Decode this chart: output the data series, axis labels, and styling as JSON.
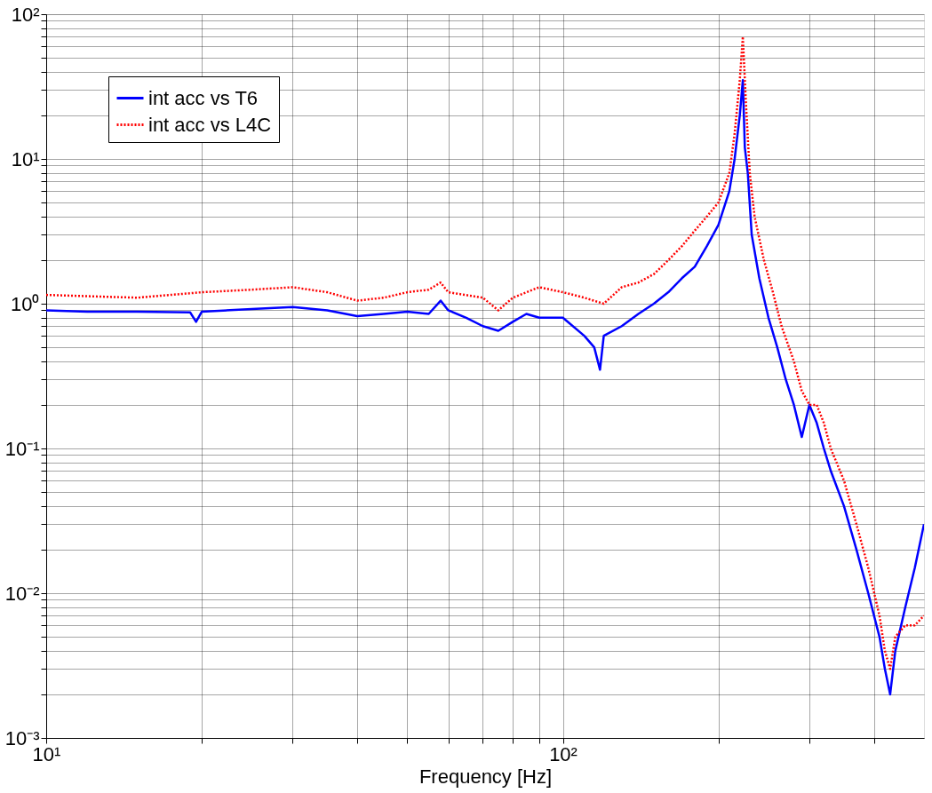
{
  "chart_data": {
    "type": "line",
    "xlabel": "Frequency [Hz]",
    "log": "xy",
    "grid": true,
    "legend": "top left",
    "marker": "none",
    "xlim": [
      10,
      500
    ],
    "ylim": [
      0.001,
      100
    ],
    "xticks": [
      {
        "value": 10,
        "label": "10¹"
      },
      {
        "value": 20,
        "label": null
      },
      {
        "value": 30,
        "label": null
      },
      {
        "value": 40,
        "label": null
      },
      {
        "value": 50,
        "label": null
      },
      {
        "value": 60,
        "label": null
      },
      {
        "value": 70,
        "label": null
      },
      {
        "value": 80,
        "label": null
      },
      {
        "value": 90,
        "label": null
      },
      {
        "value": 100,
        "label": "10²"
      },
      {
        "value": 200,
        "label": null
      },
      {
        "value": 300,
        "label": null
      },
      {
        "value": 400,
        "label": null
      }
    ],
    "yticks": [
      {
        "value": 0.001,
        "label": "10⁻³"
      },
      {
        "value": 0.002,
        "label": null
      },
      {
        "value": 0.003,
        "label": null
      },
      {
        "value": 0.004,
        "label": null
      },
      {
        "value": 0.005,
        "label": null
      },
      {
        "value": 0.006,
        "label": null
      },
      {
        "value": 0.007,
        "label": null
      },
      {
        "value": 0.008,
        "label": null
      },
      {
        "value": 0.009,
        "label": null
      },
      {
        "value": 0.01,
        "label": "10⁻²"
      },
      {
        "value": 0.02,
        "label": null
      },
      {
        "value": 0.03,
        "label": null
      },
      {
        "value": 0.04,
        "label": null
      },
      {
        "value": 0.05,
        "label": null
      },
      {
        "value": 0.06,
        "label": null
      },
      {
        "value": 0.07,
        "label": null
      },
      {
        "value": 0.08,
        "label": null
      },
      {
        "value": 0.09,
        "label": null
      },
      {
        "value": 0.1,
        "label": "10⁻¹"
      },
      {
        "value": 0.2,
        "label": null
      },
      {
        "value": 0.3,
        "label": null
      },
      {
        "value": 0.4,
        "label": null
      },
      {
        "value": 0.5,
        "label": null
      },
      {
        "value": 0.6,
        "label": null
      },
      {
        "value": 0.7,
        "label": null
      },
      {
        "value": 0.8,
        "label": null
      },
      {
        "value": 0.9,
        "label": null
      },
      {
        "value": 1,
        "label": "10⁰"
      },
      {
        "value": 2,
        "label": null
      },
      {
        "value": 3,
        "label": null
      },
      {
        "value": 4,
        "label": null
      },
      {
        "value": 5,
        "label": null
      },
      {
        "value": 6,
        "label": null
      },
      {
        "value": 7,
        "label": null
      },
      {
        "value": 8,
        "label": null
      },
      {
        "value": 9,
        "label": null
      },
      {
        "value": 10,
        "label": "10¹"
      },
      {
        "value": 20,
        "label": null
      },
      {
        "value": 30,
        "label": null
      },
      {
        "value": 40,
        "label": null
      },
      {
        "value": 50,
        "label": null
      },
      {
        "value": 60,
        "label": null
      },
      {
        "value": 70,
        "label": null
      },
      {
        "value": 80,
        "label": null
      },
      {
        "value": 90,
        "label": null
      },
      {
        "value": 100,
        "label": "10²"
      }
    ],
    "series": [
      {
        "name": "int acc vs T6",
        "color": "#0000ff",
        "line_style": "solid",
        "x": [
          10,
          12,
          15,
          19,
          19.5,
          20,
          25,
          30,
          35,
          40,
          45,
          50,
          55,
          58,
          60,
          65,
          70,
          75,
          80,
          85,
          90,
          100,
          110,
          115,
          118,
          120,
          130,
          140,
          150,
          160,
          170,
          180,
          190,
          200,
          210,
          215,
          220,
          223,
          225,
          228,
          232,
          240,
          250,
          260,
          270,
          280,
          290,
          300,
          310,
          320,
          330,
          350,
          370,
          390,
          410,
          420,
          430,
          440,
          460,
          480,
          500
        ],
        "values": [
          0.9,
          0.88,
          0.88,
          0.87,
          0.75,
          0.88,
          0.92,
          0.95,
          0.9,
          0.82,
          0.85,
          0.88,
          0.85,
          1.05,
          0.9,
          0.8,
          0.7,
          0.65,
          0.75,
          0.85,
          0.8,
          0.8,
          0.6,
          0.5,
          0.35,
          0.6,
          0.7,
          0.85,
          1.0,
          1.2,
          1.5,
          1.8,
          2.5,
          3.5,
          6,
          10,
          20,
          35,
          12,
          8,
          3,
          1.5,
          0.8,
          0.5,
          0.3,
          0.2,
          0.12,
          0.2,
          0.15,
          0.1,
          0.07,
          0.04,
          0.02,
          0.01,
          0.005,
          0.003,
          0.002,
          0.004,
          0.008,
          0.015,
          0.03
        ]
      },
      {
        "name": "int acc vs L4C",
        "color": "#ff0000",
        "line_style": "dotted",
        "x": [
          10,
          15,
          20,
          25,
          30,
          35,
          40,
          45,
          50,
          55,
          58,
          60,
          70,
          75,
          80,
          90,
          100,
          110,
          120,
          130,
          140,
          150,
          160,
          170,
          180,
          190,
          200,
          210,
          215,
          220,
          223,
          226,
          230,
          235,
          245,
          255,
          265,
          280,
          290,
          300,
          310,
          320,
          330,
          350,
          370,
          390,
          410,
          420,
          430,
          440,
          460,
          480,
          500
        ],
        "values": [
          1.15,
          1.1,
          1.2,
          1.25,
          1.3,
          1.2,
          1.05,
          1.1,
          1.2,
          1.25,
          1.4,
          1.2,
          1.1,
          0.9,
          1.1,
          1.3,
          1.2,
          1.1,
          1.0,
          1.3,
          1.4,
          1.6,
          2.0,
          2.5,
          3.2,
          4,
          5,
          8,
          15,
          35,
          70,
          25,
          8,
          4,
          2,
          1.2,
          0.7,
          0.4,
          0.25,
          0.2,
          0.2,
          0.15,
          0.1,
          0.06,
          0.03,
          0.015,
          0.007,
          0.004,
          0.003,
          0.005,
          0.006,
          0.006,
          0.007
        ]
      }
    ]
  }
}
